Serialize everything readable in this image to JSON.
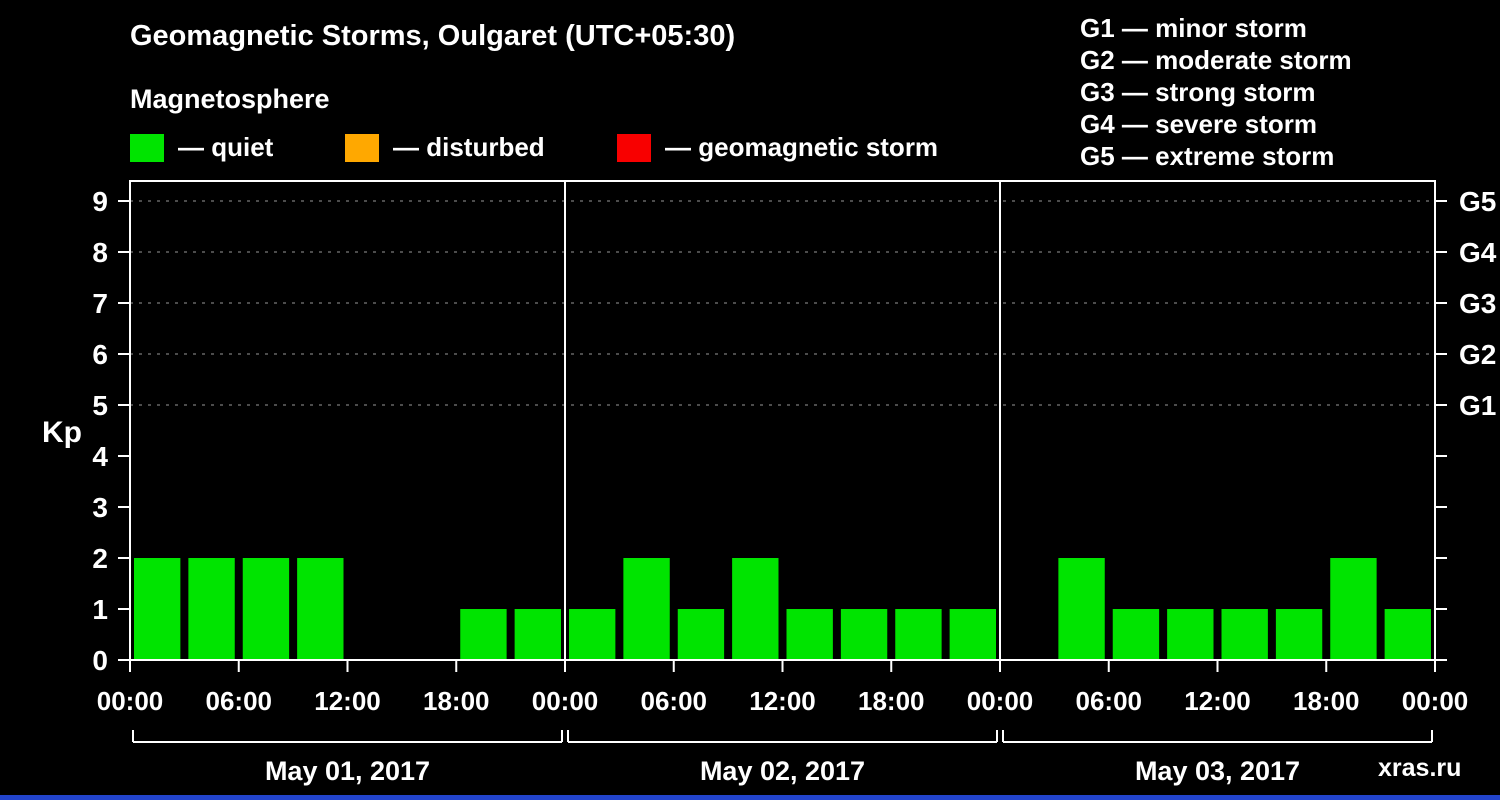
{
  "header": {
    "title": "Geomagnetic Storms, Oulgaret (UTC+05:30)",
    "subtitle": "Magnetosphere"
  },
  "legend": {
    "items": [
      {
        "label": "— quiet",
        "color": "#00e400"
      },
      {
        "label": "— disturbed",
        "color": "#ffa800"
      },
      {
        "label": "— geomagnetic storm",
        "color": "#f80000"
      }
    ]
  },
  "storm_scale": {
    "items": [
      "G1 — minor storm",
      "G2 — moderate storm",
      "G3 — strong storm",
      "G4 — severe storm",
      "G5 — extreme storm"
    ]
  },
  "watermark": "xras.ru",
  "colors": {
    "background": "#000000",
    "foreground": "#ffffff",
    "grid": "#999999",
    "bottom_strip": "#2244cc"
  },
  "chart_data": {
    "type": "bar",
    "title": "Geomagnetic Storms, Oulgaret (UTC+05:30)",
    "ylabel": "Kp",
    "ylim": [
      0,
      9.4
    ],
    "yticks": [
      0,
      1,
      2,
      3,
      4,
      5,
      6,
      7,
      8,
      9
    ],
    "grid_levels": [
      5,
      6,
      7,
      8,
      9
    ],
    "right_axis": [
      {
        "kp": 5,
        "label": "G1"
      },
      {
        "kp": 6,
        "label": "G2"
      },
      {
        "kp": 7,
        "label": "G3"
      },
      {
        "kp": 8,
        "label": "G4"
      },
      {
        "kp": 9,
        "label": "G5"
      }
    ],
    "interval_hours": 3,
    "bar_color": "#00e400",
    "x_tick_labels": [
      "00:00",
      "06:00",
      "12:00",
      "18:00",
      "00:00",
      "06:00",
      "12:00",
      "18:00",
      "00:00",
      "06:00",
      "12:00",
      "18:00",
      "00:00"
    ],
    "days": [
      {
        "label": "May 01, 2017",
        "kp_values": [
          2,
          2,
          2,
          2,
          0,
          0,
          1,
          1
        ]
      },
      {
        "label": "May 02, 2017",
        "kp_values": [
          1,
          2,
          1,
          2,
          1,
          1,
          1,
          1
        ]
      },
      {
        "label": "May 03, 2017",
        "kp_values": [
          0,
          2,
          1,
          1,
          1,
          1,
          2,
          1
        ]
      }
    ]
  }
}
